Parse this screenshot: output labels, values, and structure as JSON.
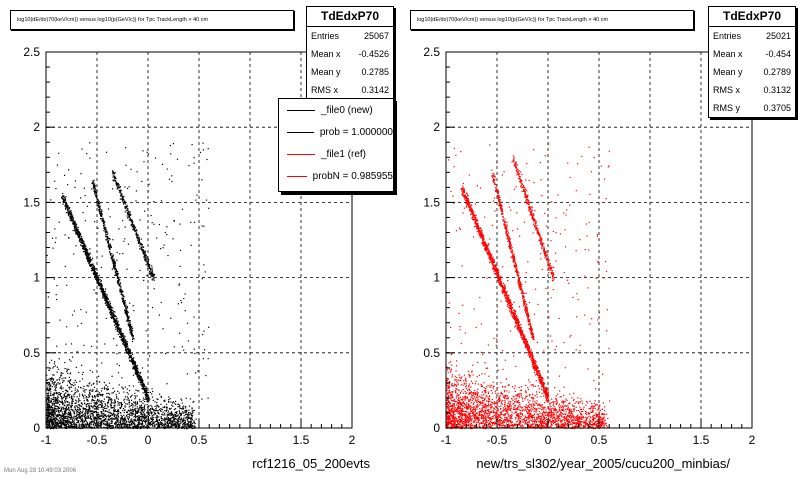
{
  "chart_data": [
    {
      "type": "scatter",
      "title": "log10(dE/dx)70(keV/cm)) versus log10(p(GeV/c)) for Tpc TrackLength > 40 cm",
      "xlabel": "rcf1216_05_200evts",
      "ylabel": "",
      "xlim": [
        -1,
        2
      ],
      "ylim": [
        0,
        2.5
      ],
      "xticks": [
        "-1",
        "-0.5",
        "0",
        "0.5",
        "1",
        "1.5",
        "2"
      ],
      "yticks": [
        "0",
        "0.5",
        "1",
        "1.5",
        "2",
        "2.5"
      ],
      "grid": true,
      "marker_color": "#000000",
      "bands": [
        {
          "name": "low-momentum blob",
          "x": [
            -1.0,
            0.45
          ],
          "y": [
            0.0,
            0.35
          ]
        },
        {
          "name": "pion band",
          "x": [
            -0.85,
            0.0
          ],
          "y": [
            1.55,
            0.2
          ]
        },
        {
          "name": "kaon band",
          "x": [
            -0.55,
            -0.15
          ],
          "y": [
            1.65,
            0.6
          ]
        },
        {
          "name": "proton band",
          "x": [
            -0.35,
            0.05
          ],
          "y": [
            1.7,
            1.0
          ]
        }
      ],
      "stats": {
        "name": "TdEdxP70",
        "rows": [
          {
            "label": "Entries",
            "value": "25067"
          },
          {
            "label": "Mean x",
            "value": "-0.4526"
          },
          {
            "label": "Mean y",
            "value": "0.2785"
          },
          {
            "label": "RMS x",
            "value": "0.3142"
          }
        ]
      },
      "legend": {
        "placement": "top-right",
        "entries": [
          {
            "label": "_file0 (new)",
            "color": "#000000"
          },
          {
            "label": "prob = 1.000000",
            "color": "#000000"
          },
          {
            "label": "_file1 (ref)",
            "color": "#ff0000"
          },
          {
            "label": "probN = 0.985955",
            "color": "#ff0000"
          }
        ]
      }
    },
    {
      "type": "scatter",
      "title": "log10(dE/dx)70(keV/cm)) versus log10(p(GeV/c)) for Tpc TrackLength > 40 cm",
      "xlabel": "new/trs_sl302/year_2005/cucu200_minbias/",
      "ylabel": "",
      "xlim": [
        -1,
        2
      ],
      "ylim": [
        0,
        2.5
      ],
      "xticks": [
        "-1",
        "-0.5",
        "0",
        "0.5",
        "1",
        "1.5",
        "2"
      ],
      "yticks": [
        "0",
        "0.5",
        "1",
        "1.5",
        "2",
        "2.5"
      ],
      "grid": true,
      "marker_color": "#ff0000",
      "bands": [
        {
          "name": "low-momentum blob",
          "x": [
            -1.0,
            0.55
          ],
          "y": [
            0.0,
            0.35
          ]
        },
        {
          "name": "pion band",
          "x": [
            -0.85,
            0.0
          ],
          "y": [
            1.6,
            0.2
          ]
        },
        {
          "name": "kaon band",
          "x": [
            -0.55,
            -0.15
          ],
          "y": [
            1.7,
            0.6
          ]
        },
        {
          "name": "proton band",
          "x": [
            -0.35,
            0.05
          ],
          "y": [
            1.8,
            1.0
          ]
        }
      ],
      "stats": {
        "name": "TdEdxP70",
        "rows": [
          {
            "label": "Entries",
            "value": "25021"
          },
          {
            "label": "Mean x",
            "value": "-0.454"
          },
          {
            "label": "Mean y",
            "value": "0.2789"
          },
          {
            "label": "RMS x",
            "value": "0.3132"
          },
          {
            "label": "RMS y",
            "value": "0.3705"
          }
        ]
      }
    }
  ],
  "footer_text": "Mon Aug 28 10:49:03 2006"
}
